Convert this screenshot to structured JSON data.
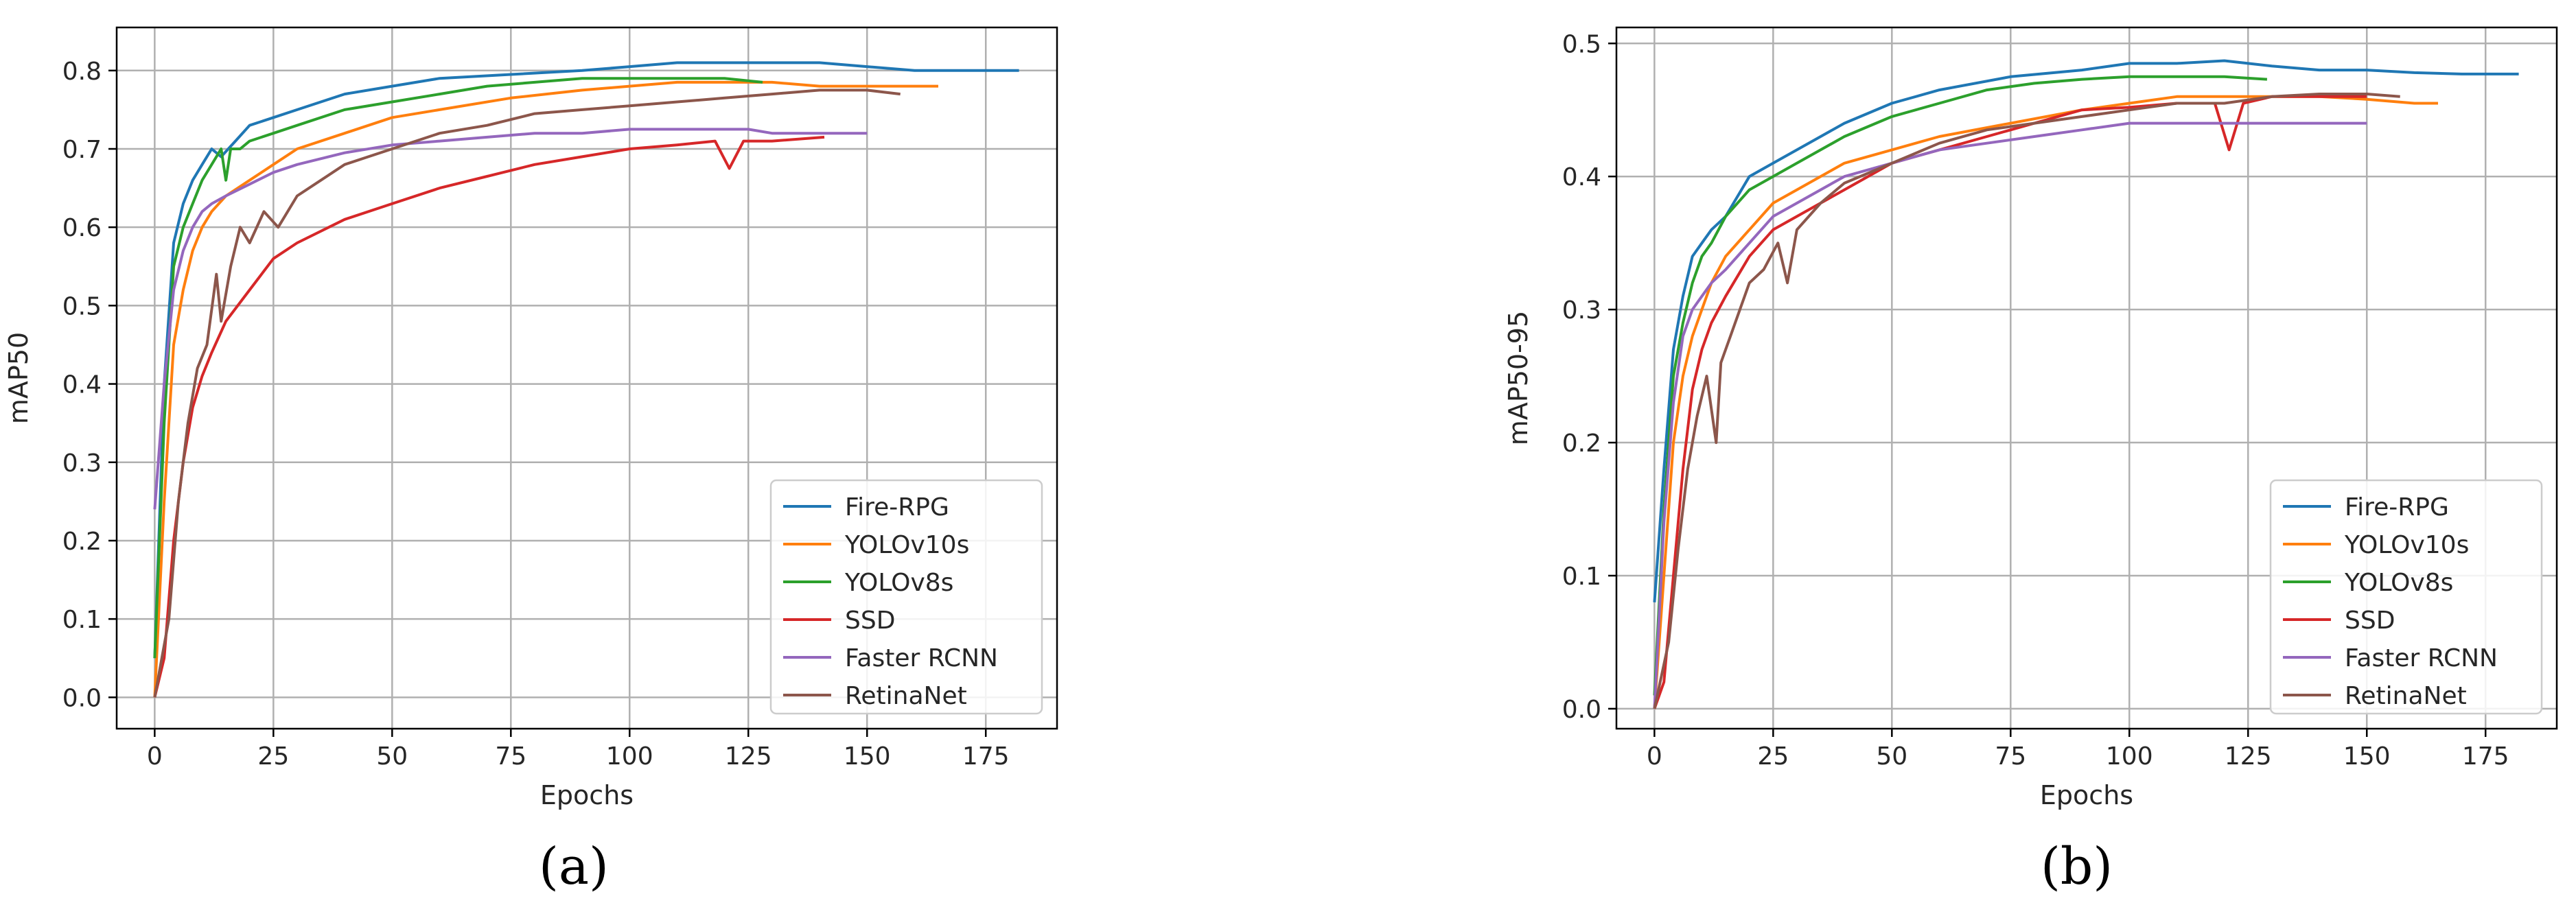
{
  "panels": [
    {
      "caption": "(a)",
      "chart_data": {
        "type": "line",
        "xlabel": "Epochs",
        "ylabel": "mAP50",
        "xlim": [
          -8,
          190
        ],
        "ylim": [
          -0.04,
          0.855
        ],
        "xticks": [
          0,
          25,
          50,
          75,
          100,
          125,
          150,
          175
        ],
        "yticks": [
          0.0,
          0.1,
          0.2,
          0.3,
          0.4,
          0.5,
          0.6,
          0.7,
          0.8
        ],
        "ytick_labels": [
          "0.0",
          "0.1",
          "0.2",
          "0.3",
          "0.4",
          "0.5",
          "0.6",
          "0.7",
          "0.8"
        ],
        "grid": true,
        "legend_position": "lower-right",
        "series": [
          {
            "name": "Fire-RPG",
            "color": "#1f77b4",
            "x": [
              0,
              2,
              4,
              6,
              8,
              10,
              12,
              14,
              17,
              20,
              25,
              30,
              35,
              40,
              50,
              60,
              75,
              90,
              100,
              110,
              120,
              125,
              130,
              140,
              150,
              160,
              170,
              182
            ],
            "y": [
              0.05,
              0.4,
              0.58,
              0.63,
              0.66,
              0.68,
              0.7,
              0.69,
              0.71,
              0.73,
              0.74,
              0.75,
              0.76,
              0.77,
              0.78,
              0.79,
              0.795,
              0.8,
              0.805,
              0.81,
              0.81,
              0.81,
              0.81,
              0.81,
              0.805,
              0.8,
              0.8,
              0.8
            ]
          },
          {
            "name": "YOLOv10s",
            "color": "#ff7f0e",
            "x": [
              0,
              2,
              4,
              6,
              8,
              10,
              12,
              15,
              20,
              25,
              30,
              40,
              50,
              60,
              75,
              90,
              100,
              110,
              120,
              125,
              130,
              140,
              150,
              160,
              165
            ],
            "y": [
              0.0,
              0.25,
              0.45,
              0.52,
              0.57,
              0.6,
              0.62,
              0.64,
              0.66,
              0.68,
              0.7,
              0.72,
              0.74,
              0.75,
              0.765,
              0.775,
              0.78,
              0.785,
              0.785,
              0.785,
              0.785,
              0.78,
              0.78,
              0.78,
              0.78
            ]
          },
          {
            "name": "YOLOv8s",
            "color": "#2ca02c",
            "x": [
              0,
              2,
              4,
              6,
              8,
              10,
              12,
              14,
              15,
              16,
              18,
              20,
              25,
              30,
              40,
              50,
              60,
              70,
              80,
              90,
              100,
              110,
              120,
              128
            ],
            "y": [
              0.05,
              0.35,
              0.55,
              0.6,
              0.63,
              0.66,
              0.68,
              0.7,
              0.66,
              0.7,
              0.7,
              0.71,
              0.72,
              0.73,
              0.75,
              0.76,
              0.77,
              0.78,
              0.785,
              0.79,
              0.79,
              0.79,
              0.79,
              0.785
            ]
          },
          {
            "name": "SSD",
            "color": "#d62728",
            "x": [
              0,
              2,
              4,
              6,
              8,
              10,
              12,
              15,
              20,
              25,
              30,
              40,
              50,
              60,
              70,
              80,
              90,
              100,
              110,
              118,
              121,
              124,
              130,
              141
            ],
            "y": [
              0.0,
              0.05,
              0.2,
              0.3,
              0.37,
              0.41,
              0.44,
              0.48,
              0.52,
              0.56,
              0.58,
              0.61,
              0.63,
              0.65,
              0.665,
              0.68,
              0.69,
              0.7,
              0.705,
              0.71,
              0.675,
              0.71,
              0.71,
              0.715
            ]
          },
          {
            "name": "Faster RCNN",
            "color": "#9467bd",
            "x": [
              0,
              2,
              4,
              6,
              8,
              10,
              12,
              15,
              20,
              25,
              30,
              40,
              50,
              60,
              70,
              80,
              90,
              100,
              110,
              120,
              125,
              130,
              140,
              150
            ],
            "y": [
              0.24,
              0.4,
              0.52,
              0.57,
              0.6,
              0.62,
              0.63,
              0.64,
              0.655,
              0.67,
              0.68,
              0.695,
              0.705,
              0.71,
              0.715,
              0.72,
              0.72,
              0.725,
              0.725,
              0.725,
              0.725,
              0.72,
              0.72,
              0.72
            ]
          },
          {
            "name": "RetinaNet",
            "color": "#8c564b",
            "x": [
              0,
              3,
              5,
              7,
              9,
              11,
              13,
              14,
              16,
              18,
              20,
              23,
              26,
              30,
              35,
              40,
              45,
              50,
              60,
              70,
              80,
              90,
              100,
              110,
              120,
              130,
              140,
              150,
              157
            ],
            "y": [
              0.0,
              0.1,
              0.25,
              0.35,
              0.42,
              0.45,
              0.54,
              0.48,
              0.55,
              0.6,
              0.58,
              0.62,
              0.6,
              0.64,
              0.66,
              0.68,
              0.69,
              0.7,
              0.72,
              0.73,
              0.745,
              0.75,
              0.755,
              0.76,
              0.765,
              0.77,
              0.775,
              0.775,
              0.77
            ]
          }
        ]
      }
    },
    {
      "caption": "(b)",
      "chart_data": {
        "type": "line",
        "xlabel": "Epochs",
        "ylabel": "mAP50-95",
        "xlim": [
          -8,
          190
        ],
        "ylim": [
          -0.015,
          0.512
        ],
        "xticks": [
          0,
          25,
          50,
          75,
          100,
          125,
          150,
          175
        ],
        "yticks": [
          0.0,
          0.1,
          0.2,
          0.3,
          0.4,
          0.5
        ],
        "ytick_labels": [
          "0.0",
          "0.1",
          "0.2",
          "0.3",
          "0.4",
          "0.5"
        ],
        "grid": true,
        "legend_position": "lower-right",
        "series": [
          {
            "name": "Fire-RPG",
            "color": "#1f77b4",
            "x": [
              0,
              2,
              4,
              6,
              8,
              10,
              12,
              15,
              20,
              25,
              30,
              35,
              40,
              50,
              60,
              75,
              90,
              100,
              110,
              120,
              125,
              130,
              140,
              150,
              160,
              170,
              182
            ],
            "y": [
              0.08,
              0.18,
              0.27,
              0.31,
              0.34,
              0.35,
              0.36,
              0.37,
              0.4,
              0.41,
              0.42,
              0.43,
              0.44,
              0.455,
              0.465,
              0.475,
              0.48,
              0.485,
              0.485,
              0.487,
              0.485,
              0.483,
              0.48,
              0.48,
              0.478,
              0.477,
              0.477
            ]
          },
          {
            "name": "YOLOv10s",
            "color": "#ff7f0e",
            "x": [
              0,
              2,
              4,
              6,
              8,
              10,
              12,
              15,
              20,
              25,
              30,
              40,
              50,
              60,
              75,
              90,
              100,
              110,
              120,
              130,
              140,
              150,
              160,
              165
            ],
            "y": [
              0.0,
              0.1,
              0.2,
              0.25,
              0.28,
              0.3,
              0.32,
              0.34,
              0.36,
              0.38,
              0.39,
              0.41,
              0.42,
              0.43,
              0.44,
              0.45,
              0.455,
              0.46,
              0.46,
              0.46,
              0.46,
              0.458,
              0.455,
              0.455
            ]
          },
          {
            "name": "YOLOv8s",
            "color": "#2ca02c",
            "x": [
              0,
              2,
              4,
              6,
              8,
              10,
              12,
              15,
              20,
              25,
              30,
              40,
              50,
              60,
              70,
              80,
              90,
              100,
              110,
              120,
              129
            ],
            "y": [
              0.01,
              0.15,
              0.25,
              0.29,
              0.32,
              0.34,
              0.35,
              0.37,
              0.39,
              0.4,
              0.41,
              0.43,
              0.445,
              0.455,
              0.465,
              0.47,
              0.473,
              0.475,
              0.475,
              0.475,
              0.473
            ]
          },
          {
            "name": "SSD",
            "color": "#d62728",
            "x": [
              0,
              2,
              4,
              6,
              8,
              10,
              12,
              15,
              20,
              25,
              30,
              40,
              50,
              60,
              70,
              80,
              90,
              100,
              110,
              118,
              121,
              124,
              130,
              140,
              150
            ],
            "y": [
              0.0,
              0.02,
              0.1,
              0.18,
              0.24,
              0.27,
              0.29,
              0.31,
              0.34,
              0.36,
              0.37,
              0.39,
              0.41,
              0.42,
              0.43,
              0.44,
              0.45,
              0.452,
              0.455,
              0.455,
              0.42,
              0.455,
              0.46,
              0.46,
              0.46
            ]
          },
          {
            "name": "Faster RCNN",
            "color": "#9467bd",
            "x": [
              0,
              2,
              4,
              6,
              8,
              10,
              12,
              15,
              20,
              25,
              30,
              40,
              50,
              60,
              70,
              80,
              90,
              100,
              110,
              120,
              130,
              140,
              150
            ],
            "y": [
              0.0,
              0.14,
              0.23,
              0.28,
              0.3,
              0.31,
              0.32,
              0.33,
              0.35,
              0.37,
              0.38,
              0.4,
              0.41,
              0.42,
              0.425,
              0.43,
              0.435,
              0.44,
              0.44,
              0.44,
              0.44,
              0.44,
              0.44
            ]
          },
          {
            "name": "RetinaNet",
            "color": "#8c564b",
            "x": [
              0,
              3,
              5,
              7,
              9,
              11,
              13,
              14,
              16,
              18,
              20,
              23,
              26,
              28,
              30,
              35,
              40,
              50,
              60,
              70,
              80,
              90,
              100,
              110,
              120,
              130,
              140,
              150,
              157
            ],
            "y": [
              0.0,
              0.05,
              0.12,
              0.18,
              0.22,
              0.25,
              0.2,
              0.26,
              0.28,
              0.3,
              0.32,
              0.33,
              0.35,
              0.32,
              0.36,
              0.38,
              0.395,
              0.41,
              0.425,
              0.435,
              0.44,
              0.445,
              0.45,
              0.455,
              0.455,
              0.46,
              0.462,
              0.462,
              0.46
            ]
          }
        ]
      }
    }
  ]
}
